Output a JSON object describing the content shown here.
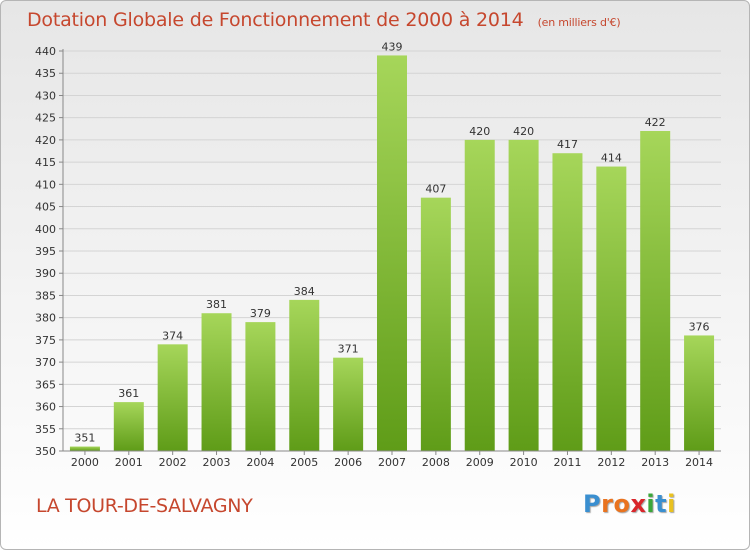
{
  "title": "Dotation Globale de Fonctionnement de 2000 à 2014",
  "subtitle": "(en milliers d'€)",
  "town": "LA TOUR-DE-SALVAGNY",
  "logo": {
    "text": "Proxiti",
    "colors": [
      "#3a8fd0",
      "#e9731f",
      "#e9731f",
      "#d9262b",
      "#3aa63a",
      "#3a8fd0",
      "#e9c11f"
    ]
  },
  "colors": {
    "bar_light": "#a6d65a",
    "bar_dark": "#5f9c18",
    "accent": "#c6472e",
    "grid": "#d4d4d4"
  },
  "chart_data": {
    "type": "bar",
    "categories": [
      "2000",
      "2001",
      "2002",
      "2003",
      "2004",
      "2005",
      "2006",
      "2007",
      "2008",
      "2009",
      "2010",
      "2011",
      "2012",
      "2013",
      "2014"
    ],
    "values": [
      351,
      361,
      374,
      381,
      379,
      384,
      371,
      439,
      407,
      420,
      420,
      417,
      414,
      422,
      376
    ],
    "ylim": [
      350,
      440
    ],
    "ytick_step": 5,
    "grid": true,
    "legend": "none"
  }
}
